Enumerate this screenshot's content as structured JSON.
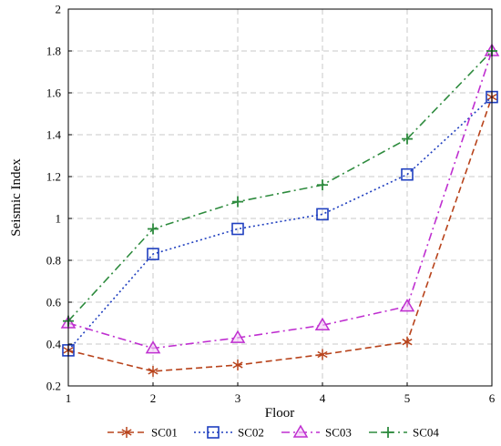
{
  "chart_data": {
    "type": "line",
    "xlabel": "Floor",
    "ylabel": "Seismic Index",
    "xlim": [
      1,
      6
    ],
    "ylim": [
      0.2,
      2
    ],
    "x": [
      1,
      2,
      3,
      4,
      5,
      6
    ],
    "x_ticks": [
      "1",
      "2",
      "3",
      "4",
      "5",
      "6"
    ],
    "y_ticks": [
      "0.2",
      "0.4",
      "0.6",
      "0.8",
      "1",
      "1.2",
      "1.4",
      "1.6",
      "1.8",
      "2"
    ],
    "grid": true,
    "legend_position": "bottom",
    "series": [
      {
        "name": "SC01",
        "values": [
          0.37,
          0.27,
          0.3,
          0.35,
          0.41,
          1.58
        ],
        "color": "#b8431b",
        "line_style": "dashed",
        "marker": "asterisk"
      },
      {
        "name": "SC02",
        "values": [
          0.37,
          0.83,
          0.95,
          1.02,
          1.21,
          1.58
        ],
        "color": "#1f3fbf",
        "line_style": "dotted",
        "marker": "square"
      },
      {
        "name": "SC03",
        "values": [
          0.5,
          0.38,
          0.43,
          0.49,
          0.58,
          1.8
        ],
        "color": "#bf2fd0",
        "line_style": "dash-dot",
        "marker": "triangle"
      },
      {
        "name": "SC04",
        "values": [
          0.51,
          0.95,
          1.08,
          1.16,
          1.38,
          1.8
        ],
        "color": "#2e8b3e",
        "line_style": "dash-dot",
        "marker": "plus"
      }
    ]
  }
}
